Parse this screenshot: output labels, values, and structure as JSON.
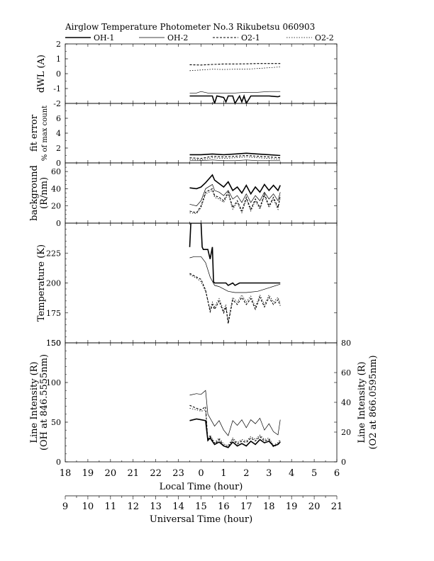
{
  "title": "Airglow Temperature Photometer No.3  Rikubetsu  060903",
  "legend": [
    {
      "name": "OH-1",
      "style": "solid-thick"
    },
    {
      "name": "OH-2",
      "style": "solid-thin"
    },
    {
      "name": "O2-1",
      "style": "dashed"
    },
    {
      "name": "O2-2",
      "style": "dotted"
    }
  ],
  "axes": {
    "local_time_label": "Local Time (hour)",
    "local_time_ticks": [
      "18",
      "19",
      "20",
      "21",
      "22",
      "23",
      "0",
      "1",
      "2",
      "3",
      "4",
      "5",
      "6"
    ],
    "universal_time_label": "Universal Time (hour)",
    "universal_time_ticks": [
      "9",
      "10",
      "11",
      "12",
      "13",
      "14",
      "15",
      "16",
      "17",
      "18",
      "19",
      "20",
      "21"
    ]
  },
  "chart_data": [
    {
      "type": "line",
      "panel": "dWL",
      "ylabel": "dWL (A)",
      "ylim": [
        -2,
        2
      ],
      "yticks": [
        "2",
        "1",
        "0",
        "-1",
        "-2"
      ],
      "series": [
        {
          "name": "OH-1",
          "x": [
            14.5,
            15,
            15.5,
            15.6,
            15.7,
            16,
            16.1,
            16.2,
            16.4,
            16.5,
            16.7,
            16.8,
            16.9,
            17,
            17.2,
            17.4,
            18,
            18.4,
            18.5
          ],
          "y": [
            -1.5,
            -1.5,
            -1.5,
            -2,
            -1.5,
            -1.6,
            -1.9,
            -1.5,
            -1.5,
            -2,
            -1.5,
            -1.9,
            -1.5,
            -2,
            -1.5,
            -1.5,
            -1.5,
            -1.55,
            -1.5
          ]
        },
        {
          "name": "OH-2",
          "x": [
            14.5,
            14.8,
            15,
            15.3,
            15.5,
            16,
            16.5,
            17,
            17.5,
            18,
            18.5
          ],
          "y": [
            -1.3,
            -1.3,
            -1.2,
            -1.3,
            -1.3,
            -1.3,
            -1.3,
            -1.25,
            -1.25,
            -1.2,
            -1.2
          ]
        },
        {
          "name": "O2-1",
          "x": [
            14.5,
            15,
            15.5,
            16,
            16.5,
            17,
            17.5,
            18,
            18.5
          ],
          "y": [
            0.6,
            0.58,
            0.62,
            0.65,
            0.65,
            0.66,
            0.68,
            0.68,
            0.68
          ]
        },
        {
          "name": "O2-2",
          "x": [
            14.5,
            15,
            15.5,
            16,
            16.5,
            17,
            17.5,
            18,
            18.5
          ],
          "y": [
            0.2,
            0.25,
            0.3,
            0.28,
            0.3,
            0.3,
            0.35,
            0.4,
            0.45
          ]
        }
      ]
    },
    {
      "type": "line",
      "panel": "fit error",
      "ylabel": "fit error",
      "ylabel2": "% of max count",
      "ylim": [
        0,
        8
      ],
      "yticks": [
        "6",
        "4",
        "2",
        "0"
      ],
      "series": [
        {
          "name": "OH-1",
          "x": [
            14.5,
            15,
            15.5,
            16,
            16.5,
            17,
            17.5,
            18,
            18.5
          ],
          "y": [
            1.1,
            1.1,
            1.2,
            1.1,
            1.2,
            1.3,
            1.2,
            1.1,
            1.0
          ]
        },
        {
          "name": "OH-2",
          "x": [
            14.5,
            15,
            15.5,
            16,
            16.5,
            17,
            17.5,
            18,
            18.5
          ],
          "y": [
            0.3,
            0.3,
            0.4,
            0.3,
            0.3,
            0.4,
            0.3,
            0.3,
            0.3
          ]
        },
        {
          "name": "O2-1",
          "x": [
            14.5,
            15,
            15.5,
            16,
            16.5,
            17,
            17.5,
            18,
            18.5
          ],
          "y": [
            0.7,
            0.6,
            0.9,
            0.8,
            0.9,
            1.0,
            0.9,
            0.8,
            0.7
          ]
        },
        {
          "name": "O2-2",
          "x": [
            14.5,
            15,
            15.5,
            16,
            16.5,
            17,
            17.5,
            18,
            18.5
          ],
          "y": [
            0.5,
            0.4,
            0.7,
            0.6,
            0.7,
            0.8,
            0.7,
            0.6,
            0.5
          ]
        }
      ]
    },
    {
      "type": "line",
      "panel": "background",
      "ylabel": "background",
      "ylabel2": "(R/nm)",
      "ylim": [
        0,
        70
      ],
      "yticks": [
        "60",
        "40",
        "20",
        "0"
      ],
      "series": [
        {
          "name": "OH-1",
          "x": [
            14.5,
            14.8,
            15,
            15.2,
            15.5,
            15.6,
            15.8,
            16,
            16.2,
            16.4,
            16.6,
            16.8,
            17,
            17.2,
            17.4,
            17.6,
            17.8,
            18,
            18.2,
            18.4,
            18.5
          ],
          "y": [
            41,
            40,
            42,
            47,
            56,
            50,
            46,
            42,
            48,
            38,
            42,
            35,
            44,
            34,
            42,
            36,
            45,
            38,
            44,
            38,
            44
          ]
        },
        {
          "name": "OH-2",
          "x": [
            14.5,
            14.8,
            15,
            15.2,
            15.5,
            15.6,
            15.8,
            16,
            16.2,
            16.4,
            16.6,
            16.8,
            17,
            17.2,
            17.4,
            17.6,
            17.8,
            18,
            18.2,
            18.4,
            18.5
          ],
          "y": [
            22,
            20,
            26,
            40,
            45,
            38,
            36,
            32,
            38,
            28,
            32,
            24,
            34,
            24,
            32,
            26,
            36,
            28,
            34,
            26,
            36
          ]
        },
        {
          "name": "O2-1",
          "x": [
            14.5,
            14.8,
            15,
            15.2,
            15.5,
            15.6,
            15.8,
            16,
            16.2,
            16.4,
            16.6,
            16.8,
            17,
            17.2,
            17.4,
            17.6,
            17.8,
            18,
            18.2,
            18.4,
            18.5
          ],
          "y": [
            14,
            12,
            20,
            36,
            40,
            32,
            30,
            26,
            36,
            18,
            26,
            14,
            30,
            16,
            28,
            18,
            34,
            20,
            30,
            18,
            32
          ]
        },
        {
          "name": "O2-2",
          "x": [
            14.5,
            14.8,
            15,
            15.2,
            15.5,
            15.6,
            15.8,
            16,
            16.2,
            16.4,
            16.6,
            16.8,
            17,
            17.2,
            17.4,
            17.6,
            17.8,
            18,
            18.2,
            18.4,
            18.5
          ],
          "y": [
            12,
            11,
            18,
            34,
            38,
            30,
            28,
            24,
            34,
            16,
            24,
            12,
            28,
            14,
            26,
            16,
            32,
            18,
            28,
            16,
            30
          ]
        }
      ]
    },
    {
      "type": "line",
      "panel": "Temperature",
      "ylabel": "Temperature (K)",
      "ylim": [
        150,
        250
      ],
      "yticks": [
        "225",
        "200",
        "175",
        "150"
      ],
      "series": [
        {
          "name": "OH-1",
          "x": [
            14.5,
            14.55,
            14.6,
            15,
            15.05,
            15.1,
            15.3,
            15.4,
            15.5,
            15.55,
            15.6,
            15.7,
            15.8,
            16,
            16.1,
            16.2,
            16.4,
            16.5,
            16.7,
            17,
            17.2,
            18,
            18.5
          ],
          "y": [
            230,
            250,
            250,
            250,
            230,
            228,
            228,
            220,
            230,
            201,
            200,
            200,
            200,
            200,
            200,
            198,
            200,
            198,
            200,
            200,
            200,
            200,
            200
          ]
        },
        {
          "name": "OH-2",
          "x": [
            14.5,
            14.7,
            15,
            15.2,
            15.4,
            15.6,
            15.8,
            16,
            16.2,
            16.5,
            17,
            17.5,
            18,
            18.5
          ],
          "y": [
            221,
            222,
            222,
            217,
            205,
            198,
            197,
            195,
            193,
            192,
            192,
            193,
            196,
            199
          ]
        },
        {
          "name": "O2-1",
          "x": [
            14.5,
            14.8,
            15,
            15.2,
            15.4,
            15.5,
            15.6,
            15.8,
            16,
            16.1,
            16.2,
            16.4,
            16.6,
            16.8,
            17,
            17.2,
            17.4,
            17.6,
            17.8,
            18,
            18.2,
            18.4,
            18.5
          ],
          "y": [
            208,
            205,
            203,
            194,
            176,
            182,
            178,
            185,
            175,
            180,
            166,
            186,
            182,
            188,
            182,
            187,
            178,
            188,
            180,
            188,
            182,
            186,
            181
          ]
        },
        {
          "name": "O2-2",
          "x": [
            14.5,
            14.8,
            15,
            15.2,
            15.4,
            15.5,
            15.6,
            15.8,
            16,
            16.1,
            16.2,
            16.4,
            16.6,
            16.8,
            17,
            17.2,
            17.4,
            17.6,
            17.8,
            18,
            18.2,
            18.4,
            18.5
          ],
          "y": [
            207,
            204,
            201,
            193,
            178,
            184,
            180,
            187,
            177,
            182,
            168,
            188,
            184,
            190,
            184,
            189,
            180,
            190,
            182,
            190,
            184,
            188,
            183
          ]
        }
      ]
    },
    {
      "type": "line",
      "panel": "Line Intensity",
      "ylabel": "Line Intensity (R)",
      "ylabel2": "(OH at 846.5555nm)",
      "y2label": "Line Intensity (R)",
      "y2label2": "(O2 at 866.0595nm)",
      "ylim": [
        0,
        150
      ],
      "y2lim": [
        0,
        80
      ],
      "yticks": [
        "150",
        "100",
        "50",
        "0"
      ],
      "y2ticks": [
        "80",
        "60",
        "40",
        "20",
        "0"
      ],
      "series": [
        {
          "name": "OH-1",
          "axis": "left",
          "x": [
            14.5,
            14.8,
            15,
            15.2,
            15.3,
            15.4,
            15.6,
            15.8,
            16,
            16.2,
            16.4,
            16.6,
            16.8,
            17,
            17.2,
            17.4,
            17.6,
            17.8,
            18,
            18.2,
            18.4,
            18.5
          ],
          "y": [
            52,
            54,
            53,
            52,
            27,
            30,
            22,
            25,
            20,
            18,
            25,
            20,
            23,
            20,
            26,
            22,
            28,
            24,
            26,
            20,
            22,
            25
          ]
        },
        {
          "name": "OH-2",
          "axis": "left",
          "x": [
            14.5,
            14.8,
            15,
            15.2,
            15.3,
            15.4,
            15.6,
            15.8,
            16,
            16.2,
            16.4,
            16.6,
            16.8,
            17,
            17.2,
            17.4,
            17.6,
            17.8,
            18,
            18.2,
            18.4,
            18.5
          ],
          "y": [
            84,
            86,
            85,
            90,
            60,
            55,
            45,
            52,
            40,
            33,
            52,
            46,
            53,
            43,
            53,
            48,
            55,
            40,
            48,
            38,
            34,
            53
          ]
        },
        {
          "name": "O2-1",
          "axis": "right",
          "x": [
            14.5,
            14.8,
            15,
            15.2,
            15.3,
            15.4,
            15.6,
            15.8,
            16,
            16.2,
            16.4,
            16.6,
            16.8,
            17,
            17.2,
            17.4,
            17.6,
            17.8,
            18,
            18.2,
            18.4,
            18.5
          ],
          "y": [
            38,
            36,
            35,
            37,
            14,
            17,
            12,
            15,
            11,
            10,
            15,
            12,
            14,
            13,
            16,
            14,
            17,
            14,
            15,
            10,
            12,
            14
          ]
        },
        {
          "name": "O2-2",
          "axis": "right",
          "x": [
            14.5,
            14.8,
            15,
            15.2,
            15.3,
            15.4,
            15.6,
            15.8,
            16,
            16.2,
            16.4,
            16.6,
            16.8,
            17,
            17.2,
            17.4,
            17.6,
            17.8,
            18,
            18.2,
            18.4,
            18.5
          ],
          "y": [
            36,
            35,
            34,
            35,
            15,
            18,
            13,
            16,
            12,
            11,
            16,
            13,
            15,
            14,
            17,
            15,
            18,
            15,
            16,
            11,
            13,
            15
          ]
        }
      ]
    }
  ]
}
